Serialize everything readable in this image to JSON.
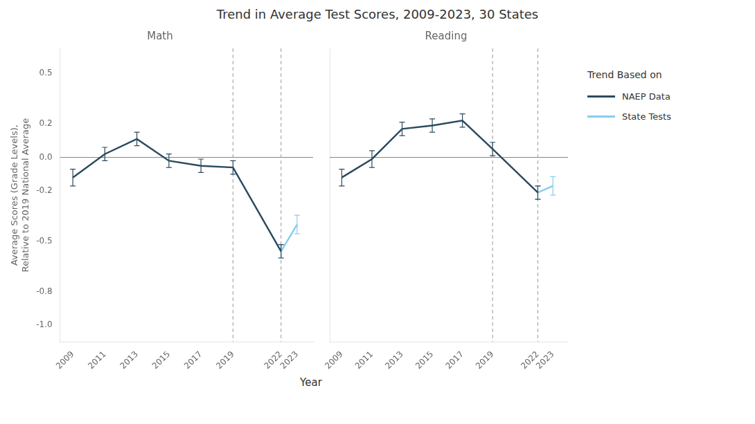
{
  "title": "Trend in Average Test Scores, 2009-2023, 30 States",
  "xlabel": "Year",
  "legend_title": "Trend Based on",
  "legend": "right",
  "chart_data": [
    {
      "type": "line",
      "title": "Math",
      "ylabel": "Average Scores (Grade Levels),\nRelative to 2019 National Average",
      "xlim": [
        2008.2,
        2024.0
      ],
      "xticks": [
        2009,
        2011,
        2013,
        2015,
        2017,
        2019,
        2022,
        2023
      ],
      "ylim": [
        -1.1,
        0.65
      ],
      "yticks": [
        {
          "value": -1.0,
          "label": "-1.0"
        },
        -0.8,
        -0.5,
        -0.2,
        {
          "value": 0.0,
          "label": "0.0"
        },
        0.2,
        0.5
      ],
      "grid": false,
      "reference_lines": {
        "x": [
          2019,
          2022
        ],
        "y": [
          0
        ]
      },
      "series": [
        {
          "name": "NAEP Data",
          "color": "#2b4a5e",
          "x": [
            2009,
            2011,
            2013,
            2015,
            2017,
            2019,
            2022
          ],
          "values": [
            -0.12,
            0.02,
            0.11,
            -0.02,
            -0.05,
            -0.06,
            -0.56
          ],
          "error_low": [
            0.05,
            0.04,
            0.04,
            0.04,
            0.04,
            0.04,
            0.04
          ],
          "error_high": [
            0.05,
            0.04,
            0.04,
            0.04,
            0.04,
            0.04,
            0.04
          ]
        },
        {
          "name": "State Tests",
          "color": "#87ceeb",
          "x": [
            2022,
            2023
          ],
          "values": [
            -0.56,
            -0.4
          ],
          "error_low": [
            0.04,
            0.055
          ],
          "error_high": [
            0.04,
            0.055
          ]
        }
      ]
    },
    {
      "type": "line",
      "title": "Reading",
      "xlim": [
        2008.2,
        2024.0
      ],
      "xticks": [
        2009,
        2011,
        2013,
        2015,
        2017,
        2019,
        2022,
        2023
      ],
      "ylim": [
        -1.1,
        0.65
      ],
      "yticks": [
        {
          "value": -1.0,
          "label": "-1.0"
        },
        -0.8,
        -0.5,
        -0.2,
        {
          "value": 0.0,
          "label": "0.0"
        },
        0.2,
        0.5
      ],
      "grid": false,
      "tick_labels": "x",
      "reference_lines": {
        "x": [
          2019,
          2022
        ],
        "y": [
          0
        ]
      },
      "series": [
        {
          "name": "NAEP Data",
          "color": "#2b4a5e",
          "x": [
            2009,
            2011,
            2013,
            2015,
            2017,
            2019,
            2022
          ],
          "values": [
            -0.12,
            -0.01,
            0.17,
            0.19,
            0.22,
            0.05,
            -0.21
          ],
          "error_low": [
            0.05,
            0.05,
            0.04,
            0.04,
            0.04,
            0.04,
            0.04
          ],
          "error_high": [
            0.05,
            0.05,
            0.04,
            0.04,
            0.04,
            0.04,
            0.04
          ]
        },
        {
          "name": "State Tests",
          "color": "#87ceeb",
          "x": [
            2022,
            2023
          ],
          "values": [
            -0.21,
            -0.17
          ],
          "error_low": [
            0.04,
            0.055
          ],
          "error_high": [
            0.04,
            0.055
          ]
        }
      ]
    }
  ]
}
